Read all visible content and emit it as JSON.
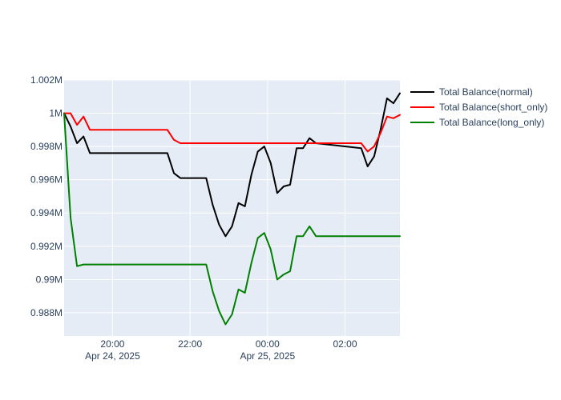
{
  "chart_data": {
    "type": "line",
    "title": "",
    "xlabel": "",
    "ylabel": "",
    "x_range": [
      "2025-04-24T18:45",
      "2025-04-25T03:25"
    ],
    "ylim": [
      986600,
      1002000
    ],
    "x_ticks": [
      {
        "t": "2025-04-24T20:00",
        "label": "20:00",
        "sublabel": "Apr 24, 2025"
      },
      {
        "t": "2025-04-24T22:00",
        "label": "22:00",
        "sublabel": ""
      },
      {
        "t": "2025-04-25T00:00",
        "label": "00:00",
        "sublabel": "Apr 25, 2025"
      },
      {
        "t": "2025-04-25T02:00",
        "label": "02:00",
        "sublabel": ""
      }
    ],
    "y_ticks": [
      {
        "v": 988000,
        "label": "0.988M"
      },
      {
        "v": 990000,
        "label": "0.99M"
      },
      {
        "v": 992000,
        "label": "0.992M"
      },
      {
        "v": 994000,
        "label": "0.994M"
      },
      {
        "v": 996000,
        "label": "0.996M"
      },
      {
        "v": 998000,
        "label": "0.998M"
      },
      {
        "v": 1000000,
        "label": "1M"
      },
      {
        "v": 1002000,
        "label": "1.002M"
      }
    ],
    "grid": true,
    "legend_position": "right",
    "series": [
      {
        "name": "Total Balance(normal)",
        "color": "#000000",
        "x": [
          "2025-04-24T18:45",
          "2025-04-24T18:55",
          "2025-04-24T19:05",
          "2025-04-24T19:15",
          "2025-04-24T19:25",
          "2025-04-24T21:25",
          "2025-04-24T21:35",
          "2025-04-24T21:45",
          "2025-04-24T22:25",
          "2025-04-24T22:35",
          "2025-04-24T22:45",
          "2025-04-24T22:55",
          "2025-04-24T23:05",
          "2025-04-24T23:15",
          "2025-04-24T23:25",
          "2025-04-24T23:35",
          "2025-04-24T23:45",
          "2025-04-24T23:55",
          "2025-04-25T00:05",
          "2025-04-25T00:15",
          "2025-04-25T00:25",
          "2025-04-25T00:35",
          "2025-04-25T00:45",
          "2025-04-25T00:55",
          "2025-04-25T01:05",
          "2025-04-25T01:15",
          "2025-04-25T02:25",
          "2025-04-25T02:35",
          "2025-04-25T02:45",
          "2025-04-25T02:55",
          "2025-04-25T03:05",
          "2025-04-25T03:15",
          "2025-04-25T03:25"
        ],
        "y": [
          1000000,
          999200,
          998200,
          998600,
          997600,
          997600,
          996400,
          996100,
          996100,
          994500,
          993300,
          992600,
          993200,
          994600,
          994400,
          996300,
          997700,
          998000,
          997000,
          995200,
          995600,
          995700,
          997900,
          997900,
          998500,
          998200,
          997900,
          996800,
          997400,
          999000,
          1000900,
          1000600,
          1001200
        ]
      },
      {
        "name": "Total Balance(short_only)",
        "color": "#ff0000",
        "x": [
          "2025-04-24T18:45",
          "2025-04-24T18:55",
          "2025-04-24T19:05",
          "2025-04-24T19:15",
          "2025-04-24T19:25",
          "2025-04-24T21:25",
          "2025-04-24T21:35",
          "2025-04-24T21:45",
          "2025-04-25T02:25",
          "2025-04-25T02:35",
          "2025-04-25T02:45",
          "2025-04-25T02:55",
          "2025-04-25T03:05",
          "2025-04-25T03:15",
          "2025-04-25T03:25"
        ],
        "y": [
          1000000,
          1000000,
          999300,
          999800,
          999000,
          999000,
          998400,
          998200,
          998200,
          997700,
          998000,
          998800,
          999800,
          999700,
          999900
        ]
      },
      {
        "name": "Total Balance(long_only)",
        "color": "#008000",
        "x": [
          "2025-04-24T18:45",
          "2025-04-24T18:55",
          "2025-04-24T19:05",
          "2025-04-24T19:15",
          "2025-04-24T22:25",
          "2025-04-24T22:35",
          "2025-04-24T22:45",
          "2025-04-24T22:55",
          "2025-04-24T23:05",
          "2025-04-24T23:15",
          "2025-04-24T23:25",
          "2025-04-24T23:35",
          "2025-04-24T23:45",
          "2025-04-24T23:55",
          "2025-04-25T00:05",
          "2025-04-25T00:15",
          "2025-04-25T00:25",
          "2025-04-25T00:35",
          "2025-04-25T00:45",
          "2025-04-25T00:55",
          "2025-04-25T01:05",
          "2025-04-25T01:15",
          "2025-04-25T03:25"
        ],
        "y": [
          1000000,
          993700,
          990800,
          990900,
          990900,
          989300,
          988100,
          987300,
          987900,
          989400,
          989200,
          991000,
          992500,
          992800,
          991800,
          990000,
          990300,
          990500,
          992600,
          992600,
          993200,
          992600,
          992600
        ]
      }
    ]
  }
}
